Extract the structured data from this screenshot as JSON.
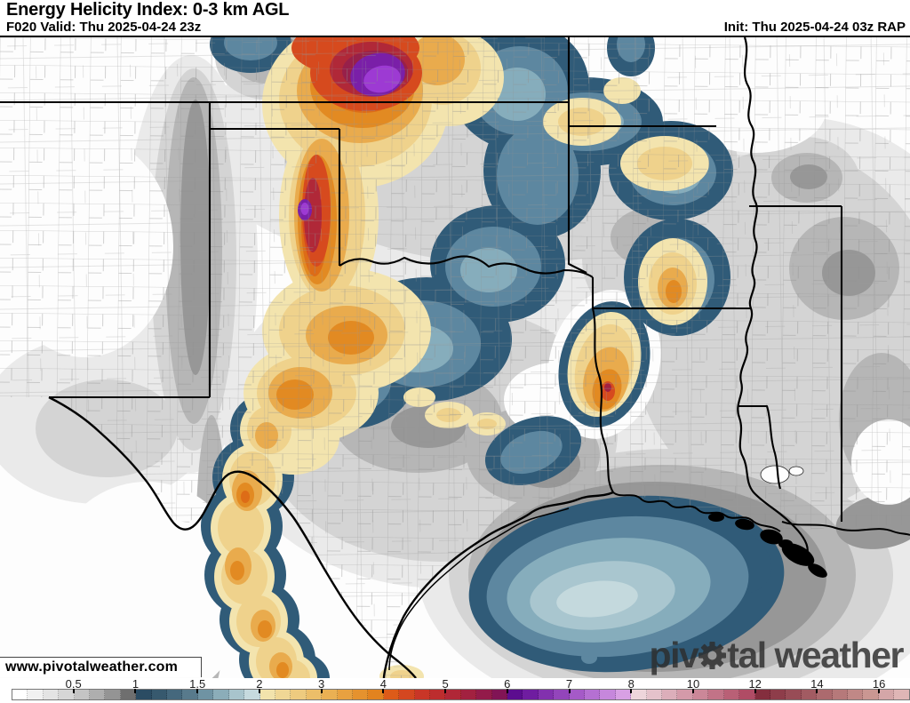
{
  "header": {
    "title": "Energy Helicity Index: 0-3 km AGL",
    "forecast_valid": "F020 Valid: Thu 2025-04-24 23z",
    "init": "Init: Thu 2025-04-24 03z RAP"
  },
  "map": {
    "watermark": "www.pivotalweather.com",
    "logo_part1": "piv",
    "logo_part2": "tal weather"
  },
  "colorbar": {
    "ticks": [
      {
        "label": "0.5",
        "cell": 4
      },
      {
        "label": "1",
        "cell": 8
      },
      {
        "label": "1.5",
        "cell": 12
      },
      {
        "label": "2",
        "cell": 16
      },
      {
        "label": "3",
        "cell": 20
      },
      {
        "label": "4",
        "cell": 24
      },
      {
        "label": "5",
        "cell": 28
      },
      {
        "label": "6",
        "cell": 32
      },
      {
        "label": "7",
        "cell": 36
      },
      {
        "label": "8",
        "cell": 40
      },
      {
        "label": "10",
        "cell": 44
      },
      {
        "label": "12",
        "cell": 48
      },
      {
        "label": "14",
        "cell": 52
      },
      {
        "label": "16",
        "cell": 56
      }
    ],
    "cells": [
      "#ffffff",
      "#f1f1f1",
      "#e4e4e4",
      "#d6d6d6",
      "#c4c4c4",
      "#aeaeae",
      "#949494",
      "#6f6f6f",
      "#2b4c63",
      "#37596e",
      "#45687d",
      "#587a8c",
      "#6f93a3",
      "#8badb9",
      "#a8c4cc",
      "#c6dade",
      "#f2e3ac",
      "#f0d795",
      "#eecb7f",
      "#ecbe69",
      "#eab053",
      "#e8a140",
      "#e5922e",
      "#e2831f",
      "#dd5b19",
      "#d44720",
      "#c93627",
      "#bd2d2e",
      "#b02737",
      "#a22140",
      "#931b4a",
      "#811455",
      "#5c0d8f",
      "#6f1da0",
      "#8231ae",
      "#9345bb",
      "#a55ac7",
      "#b570d2",
      "#c687dc",
      "#d8a0e4",
      "#eed5db",
      "#e5c2cb",
      "#dcaeba",
      "#d49aa9",
      "#cb8798",
      "#c27387",
      "#b96076",
      "#b04c65",
      "#842e3e",
      "#8e3d4a",
      "#984c56",
      "#a25b62",
      "#ac6a6e",
      "#b6797a",
      "#c08886",
      "#ca9792",
      "#d4a6a8",
      "#dfb6b6"
    ]
  }
}
